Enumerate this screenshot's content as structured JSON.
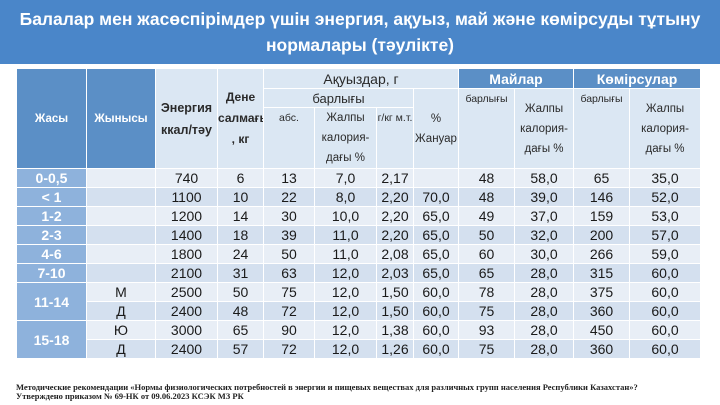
{
  "title": {
    "line1": "Балалар мен жасөспірімдер үшін энергия, ақуыз, май және көмірсуды тұтыну",
    "line2": "нормалары (тәулікте)"
  },
  "headers": {
    "age": "Жасы",
    "gender": "Жынысы",
    "energy": "Энергия ккал/тәу",
    "body_mass": "Дене салмағы , кг",
    "proteins": "Ақуыздар, г",
    "proteins_total": "барлығы",
    "proteins_animal": "% Жануар",
    "abs": "абс.",
    "total_calorie_pct": "Жалпы калория-дағы %",
    "g_per_kg": "г/кг м.т.",
    "fats": "Майлар",
    "fats_total": "барлығы",
    "fats_calorie_pct": "Жалпы калория-дағы %",
    "carbs": "Көмірсулар",
    "carbs_total": "барлығы",
    "carbs_calorie_pct": "Жалпы калория-дағы %"
  },
  "rows": [
    {
      "age": "0-0,5",
      "gender": "",
      "energy": "740",
      "mass": "6",
      "abs": "13",
      "pcal": "7,0",
      "gkg": "2,17",
      "animal": "",
      "fat": "48",
      "fat_pct": "58,0",
      "carb": "65",
      "carb_pct": "35,0"
    },
    {
      "age": "< 1",
      "gender": "",
      "energy": "1100",
      "mass": "10",
      "abs": "22",
      "pcal": "8,0",
      "gkg": "2,20",
      "animal": "70,0",
      "fat": "48",
      "fat_pct": "39,0",
      "carb": "146",
      "carb_pct": "52,0"
    },
    {
      "age": "1-2",
      "gender": "",
      "energy": "1200",
      "mass": "14",
      "abs": "30",
      "pcal": "10,0",
      "gkg": "2,20",
      "animal": "65,0",
      "fat": "49",
      "fat_pct": "37,0",
      "carb": "159",
      "carb_pct": "53,0"
    },
    {
      "age": "2-3",
      "gender": "",
      "energy": "1400",
      "mass": "18",
      "abs": "39",
      "pcal": "11,0",
      "gkg": "2,20",
      "animal": "65,0",
      "fat": "50",
      "fat_pct": "32,0",
      "carb": "200",
      "carb_pct": "57,0"
    },
    {
      "age": "4-6",
      "gender": "",
      "energy": "1800",
      "mass": "24",
      "abs": "50",
      "pcal": "11,0",
      "gkg": "2,08",
      "animal": "65,0",
      "fat": "60",
      "fat_pct": "30,0",
      "carb": "266",
      "carb_pct": "59,0"
    },
    {
      "age": "7-10",
      "gender": "",
      "energy": "2100",
      "mass": "31",
      "abs": "63",
      "pcal": "12,0",
      "gkg": "2,03",
      "animal": "65,0",
      "fat": "65",
      "fat_pct": "28,0",
      "carb": "315",
      "carb_pct": "60,0"
    },
    {
      "age": "11-14",
      "gender": "М",
      "energy": "2500",
      "mass": "50",
      "abs": "75",
      "pcal": "12,0",
      "gkg": "1,50",
      "animal": "60,0",
      "fat": "78",
      "fat_pct": "28,0",
      "carb": "375",
      "carb_pct": "60,0"
    },
    {
      "age": "",
      "gender": "Д",
      "energy": "2400",
      "mass": "48",
      "abs": "72",
      "pcal": "12,0",
      "gkg": "1,50",
      "animal": "60,0",
      "fat": "75",
      "fat_pct": "28,0",
      "carb": "360",
      "carb_pct": "60,0"
    },
    {
      "age": "15-18",
      "gender": "Ю",
      "energy": "3000",
      "mass": "65",
      "abs": "90",
      "pcal": "12,0",
      "gkg": "1,38",
      "animal": "60,0",
      "fat": "93",
      "fat_pct": "28,0",
      "carb": "450",
      "carb_pct": "60,0"
    },
    {
      "age": "",
      "gender": "Д",
      "energy": "2400",
      "mass": "57",
      "abs": "72",
      "pcal": "12,0",
      "gkg": "1,26",
      "animal": "60,0",
      "fat": "75",
      "fat_pct": "28,0",
      "carb": "360",
      "carb_pct": "60,0"
    }
  ],
  "footer": {
    "line1": "Методические рекомендации «Нормы физиологических потребностей в энергии и пищевых веществах для различных групп населения Республики Казахстан»?",
    "line2": "Утверждено приказом № 69-НК от 09.06.2023 КСЭК МЗ РК"
  }
}
